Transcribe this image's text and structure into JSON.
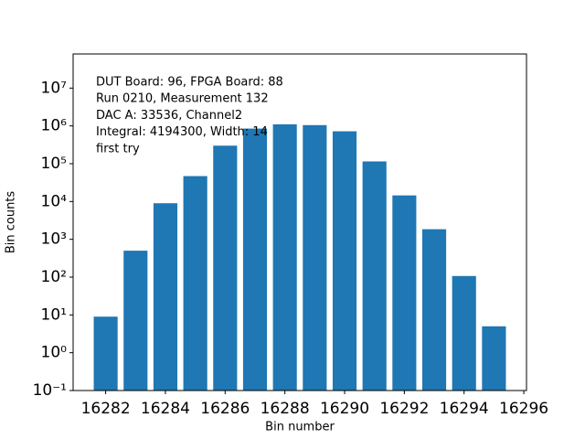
{
  "chart_data": {
    "type": "bar",
    "x": [
      16282,
      16283,
      16284,
      16285,
      16286,
      16287,
      16288,
      16289,
      16290,
      16291,
      16292,
      16293,
      16294,
      16295
    ],
    "values": [
      9,
      500,
      9000,
      47000,
      300000,
      850000,
      1100000,
      1050000,
      720000,
      115000,
      14500,
      1850,
      107,
      5
    ],
    "color": "#1f77b4",
    "xlabel": "Bin number",
    "ylabel": "Bin counts",
    "xlim": [
      16280.91,
      16296.09
    ],
    "xticks": [
      16282,
      16284,
      16286,
      16288,
      16290,
      16292,
      16294,
      16296
    ],
    "ylim": [
      0.1,
      80000000
    ],
    "yscale": "log",
    "yticks": [
      {
        "value": 0.1,
        "label": "10⁻¹"
      },
      {
        "value": 1,
        "label": "10⁰"
      },
      {
        "value": 10,
        "label": "10¹"
      },
      {
        "value": 100,
        "label": "10²"
      },
      {
        "value": 1000,
        "label": "10³"
      },
      {
        "value": 10000,
        "label": "10⁴"
      },
      {
        "value": 100000,
        "label": "10⁵"
      },
      {
        "value": 1000000,
        "label": "10⁶"
      },
      {
        "value": 10000000,
        "label": "10⁷"
      }
    ],
    "annotations": [
      "DUT Board: 96, FPGA Board: 88",
      "Run 0210, Measurement 132",
      "DAC A: 33536, Channel2",
      "Integral: 4194300, Width: 14",
      "first try"
    ]
  }
}
